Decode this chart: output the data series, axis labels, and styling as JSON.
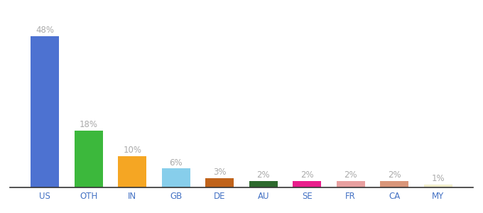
{
  "categories": [
    "US",
    "OTH",
    "IN",
    "GB",
    "DE",
    "AU",
    "SE",
    "FR",
    "CA",
    "MY"
  ],
  "values": [
    48,
    18,
    10,
    6,
    3,
    2,
    2,
    2,
    2,
    1
  ],
  "bar_colors": [
    "#4d72d1",
    "#3cb83c",
    "#f5a623",
    "#87ceeb",
    "#c0631a",
    "#2d6a2d",
    "#e91e8c",
    "#e8a0a0",
    "#d9967a",
    "#f0edca"
  ],
  "label_fontsize": 8.5,
  "tick_fontsize": 8.5,
  "label_color": "#aaaaaa",
  "tick_color": "#4472c4",
  "background_color": "#ffffff",
  "ylim": [
    0,
    54
  ]
}
